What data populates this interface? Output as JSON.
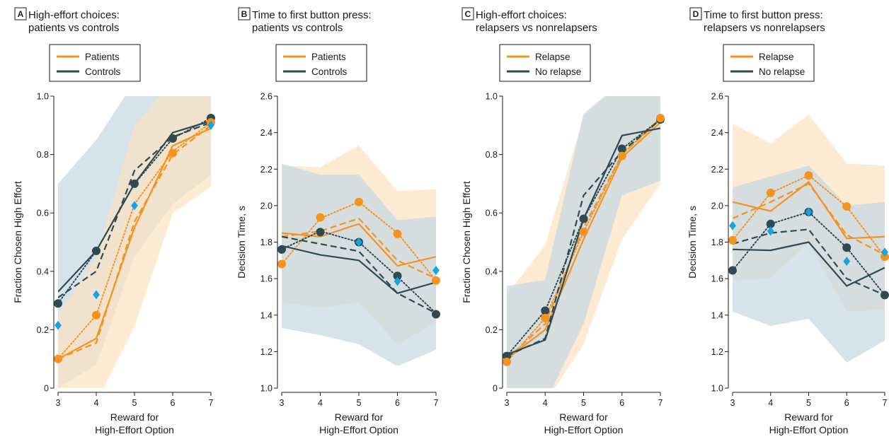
{
  "colors": {
    "orange": "#f5931e",
    "dark": "#2e4a53",
    "cyan": "#16a4e0",
    "orange_band": "#fbe2c2",
    "blue_band": "#c7d8e2"
  },
  "chart_data": [
    {
      "letter": "A",
      "type": "line",
      "title_lines": [
        "High-effort choices:",
        "patients vs controls"
      ],
      "xlabel_lines": [
        "Reward for",
        "High-Effort Option"
      ],
      "ylabel": "Fraction Chosen High Effort",
      "x": [
        3,
        4,
        5,
        6,
        7
      ],
      "xlim": [
        3,
        7
      ],
      "ylim": [
        0,
        1.0
      ],
      "yticks": [
        0,
        0.2,
        0.4,
        0.6,
        0.8,
        1.0
      ],
      "ytick_labels": [
        "0",
        "0.2",
        "0.4",
        "0.6",
        "0.8",
        "1.0"
      ],
      "grid": false,
      "legend_position": "top",
      "legend": [
        {
          "label": "Patients",
          "color": "orange"
        },
        {
          "label": "Controls",
          "color": "dark"
        }
      ],
      "bands": [
        {
          "color": "blue_band",
          "upper": [
            0.7,
            0.85,
            1.05,
            1.05,
            1.05
          ],
          "lower": [
            0.0,
            0.08,
            0.45,
            0.63,
            0.73
          ]
        },
        {
          "color": "orange_band",
          "upper": [
            0.25,
            0.45,
            0.9,
            1.05,
            1.05
          ],
          "lower": [
            -0.05,
            -0.05,
            0.21,
            0.6,
            0.69
          ]
        }
      ],
      "lines": [
        {
          "color": "dark",
          "style": "solid",
          "values": [
            0.33,
            0.47,
            0.7,
            0.875,
            0.915
          ]
        },
        {
          "color": "dark",
          "style": "dashed",
          "values": [
            0.31,
            0.4,
            0.745,
            0.86,
            0.91
          ]
        },
        {
          "color": "dark",
          "style": "dotted",
          "values": [
            0.29,
            0.47,
            0.7,
            0.855,
            0.925
          ]
        },
        {
          "color": "orange",
          "style": "solid",
          "values": [
            0.1,
            0.17,
            0.55,
            0.83,
            0.89
          ]
        },
        {
          "color": "orange",
          "style": "dashed",
          "values": [
            0.1,
            0.155,
            0.57,
            0.8,
            0.9
          ]
        },
        {
          "color": "orange",
          "style": "dotted",
          "values": [
            0.1,
            0.25,
            0.63,
            0.81,
            0.91
          ]
        }
      ],
      "markers": [
        {
          "shape": "circle",
          "color": "dark",
          "values": [
            0.29,
            0.47,
            0.7,
            0.855,
            0.925
          ]
        },
        {
          "shape": "circle",
          "color": "orange",
          "values": [
            0.1,
            0.25,
            null,
            0.805,
            0.91
          ]
        },
        {
          "shape": "diamond",
          "color": "cyan",
          "values": [
            0.215,
            0.32,
            0.625,
            null,
            0.9
          ]
        }
      ]
    },
    {
      "letter": "B",
      "type": "line",
      "title_lines": [
        "Time to first button press:",
        "patients vs controls"
      ],
      "xlabel_lines": [
        "Reward for",
        "High-Effort Option"
      ],
      "ylabel": "Decision Time, s",
      "x": [
        3,
        4,
        5,
        6,
        7
      ],
      "xlim": [
        3,
        7
      ],
      "ylim": [
        1.0,
        2.6
      ],
      "yticks": [
        1.0,
        1.2,
        1.4,
        1.6,
        1.8,
        2.0,
        2.2,
        2.4,
        2.6
      ],
      "ytick_labels": [
        "1.0",
        "1.2",
        "1.4",
        "1.6",
        "1.8",
        "2.0",
        "2.2",
        "2.4",
        "2.6"
      ],
      "grid": false,
      "legend_position": "top",
      "legend": [
        {
          "label": "Patients",
          "color": "orange"
        },
        {
          "label": "Controls",
          "color": "dark"
        }
      ],
      "bands": [
        {
          "color": "orange_band",
          "upper": [
            2.22,
            2.21,
            2.33,
            2.08,
            2.09
          ],
          "lower": [
            1.47,
            1.44,
            1.47,
            1.24,
            1.36
          ]
        },
        {
          "color": "blue_band",
          "upper": [
            2.23,
            2.17,
            2.17,
            1.92,
            1.94
          ],
          "lower": [
            1.33,
            1.29,
            1.24,
            1.12,
            1.21
          ]
        }
      ],
      "lines": [
        {
          "color": "orange",
          "style": "solid",
          "values": [
            1.85,
            1.83,
            1.9,
            1.67,
            1.72
          ]
        },
        {
          "color": "orange",
          "style": "dashed",
          "values": [
            1.83,
            1.86,
            1.93,
            1.7,
            1.6
          ]
        },
        {
          "color": "orange",
          "style": "dotted",
          "values": [
            1.68,
            1.93,
            2.02,
            1.85,
            1.59
          ]
        },
        {
          "color": "dark",
          "style": "solid",
          "values": [
            1.78,
            1.73,
            1.7,
            1.52,
            1.58
          ]
        },
        {
          "color": "dark",
          "style": "dashed",
          "values": [
            1.83,
            1.79,
            1.75,
            1.52,
            1.41
          ]
        },
        {
          "color": "dark",
          "style": "dotted",
          "values": [
            1.76,
            1.86,
            1.8,
            1.61,
            1.41
          ]
        }
      ],
      "markers": [
        {
          "shape": "circle",
          "color": "orange",
          "values": [
            1.68,
            1.935,
            2.02,
            1.845,
            1.59
          ]
        },
        {
          "shape": "circle",
          "color": "dark",
          "values": [
            1.76,
            1.855,
            1.8,
            1.615,
            1.405
          ]
        },
        {
          "shape": "diamond",
          "color": "cyan",
          "values": [
            null,
            null,
            1.8,
            1.585,
            1.645
          ]
        }
      ]
    },
    {
      "letter": "C",
      "type": "line",
      "title_lines": [
        "High-effort choices:",
        "relapsers vs nonrelapsers"
      ],
      "xlabel_lines": [
        "Reward for",
        "High-Effort Option"
      ],
      "ylabel": "Fraction Chosen High Effort",
      "x": [
        3,
        4,
        5,
        6,
        7
      ],
      "xlim": [
        3,
        7
      ],
      "ylim": [
        0,
        1.0
      ],
      "yticks": [
        0,
        0.2,
        0.4,
        0.6,
        0.8,
        1.0
      ],
      "ytick_labels": [
        "0",
        "0.2",
        "0.4",
        "0.6",
        "0.8",
        "1.0"
      ],
      "grid": false,
      "legend_position": "top",
      "legend": [
        {
          "label": "Relapse",
          "color": "orange"
        },
        {
          "label": "No relapse",
          "color": "dark"
        }
      ],
      "bands": [
        {
          "color": "orange_band",
          "upper": [
            0.32,
            0.49,
            0.93,
            1.05,
            1.05
          ],
          "lower": [
            -0.05,
            -0.05,
            0.15,
            0.51,
            0.7
          ]
        },
        {
          "color": "blue_band",
          "upper": [
            0.35,
            0.37,
            0.94,
            1.05,
            1.05
          ],
          "lower": [
            -0.05,
            -0.05,
            0.22,
            0.66,
            0.71
          ]
        }
      ],
      "lines": [
        {
          "color": "orange",
          "style": "solid",
          "values": [
            0.1,
            0.2,
            0.51,
            0.79,
            0.91
          ]
        },
        {
          "color": "orange",
          "style": "dashed",
          "values": [
            0.1,
            0.22,
            0.55,
            0.8,
            0.92
          ]
        },
        {
          "color": "orange",
          "style": "dotted",
          "values": [
            0.09,
            0.24,
            0.535,
            0.8,
            0.925
          ]
        },
        {
          "color": "dark",
          "style": "solid",
          "values": [
            0.115,
            0.165,
            0.58,
            0.865,
            0.89
          ]
        },
        {
          "color": "dark",
          "style": "dashed",
          "values": [
            0.11,
            0.17,
            0.66,
            0.81,
            0.92
          ]
        },
        {
          "color": "dark",
          "style": "dotted",
          "values": [
            0.11,
            0.265,
            0.58,
            0.82,
            0.92
          ]
        }
      ],
      "markers": [
        {
          "shape": "circle",
          "color": "dark",
          "values": [
            0.11,
            0.265,
            0.58,
            0.82,
            0.92
          ]
        },
        {
          "shape": "circle",
          "color": "orange",
          "values": [
            0.09,
            0.24,
            0.535,
            0.795,
            0.925
          ]
        }
      ]
    },
    {
      "letter": "D",
      "type": "line",
      "title_lines": [
        "Time to first button press:",
        "relapsers vs nonrelapsers"
      ],
      "xlabel_lines": [
        "Reward for",
        "High-Effort Option"
      ],
      "ylabel": "Decision Time, s",
      "x": [
        3,
        4,
        5,
        6,
        7
      ],
      "xlim": [
        3,
        7
      ],
      "ylim": [
        1.0,
        2.6
      ],
      "yticks": [
        1.0,
        1.2,
        1.4,
        1.6,
        1.8,
        2.0,
        2.2,
        2.4,
        2.6
      ],
      "ytick_labels": [
        "1.0",
        "1.2",
        "1.4",
        "1.6",
        "1.8",
        "2.0",
        "2.2",
        "2.4",
        "2.6"
      ],
      "grid": false,
      "legend_position": "top",
      "legend": [
        {
          "label": "Relapse",
          "color": "orange"
        },
        {
          "label": "No relapse",
          "color": "dark"
        }
      ],
      "bands": [
        {
          "color": "orange_band",
          "upper": [
            2.45,
            2.34,
            2.5,
            2.23,
            2.22
          ],
          "lower": [
            1.59,
            1.6,
            1.8,
            1.42,
            1.43
          ]
        },
        {
          "color": "blue_band",
          "upper": [
            2.1,
            2.16,
            2.22,
            2.0,
            2.02
          ],
          "lower": [
            1.42,
            1.34,
            1.38,
            1.14,
            1.26
          ]
        }
      ],
      "lines": [
        {
          "color": "orange",
          "style": "solid",
          "values": [
            2.02,
            1.97,
            2.13,
            1.82,
            1.83
          ]
        },
        {
          "color": "orange",
          "style": "dashed",
          "values": [
            1.93,
            2.02,
            2.12,
            1.84,
            1.73
          ]
        },
        {
          "color": "orange",
          "style": "dotted",
          "values": [
            1.81,
            2.07,
            2.165,
            1.995,
            1.72
          ]
        },
        {
          "color": "dark",
          "style": "solid",
          "values": [
            1.76,
            1.755,
            1.8,
            1.56,
            1.66
          ]
        },
        {
          "color": "dark",
          "style": "dashed",
          "values": [
            1.79,
            1.85,
            1.87,
            1.6,
            1.51
          ]
        },
        {
          "color": "dark",
          "style": "dotted",
          "values": [
            1.645,
            1.9,
            1.965,
            1.77,
            1.51
          ]
        }
      ],
      "markers": [
        {
          "shape": "circle",
          "color": "orange",
          "values": [
            1.81,
            2.07,
            2.165,
            1.995,
            1.72
          ]
        },
        {
          "shape": "circle",
          "color": "dark",
          "values": [
            1.645,
            1.9,
            1.965,
            1.77,
            1.51
          ]
        },
        {
          "shape": "diamond",
          "color": "cyan",
          "values": [
            1.89,
            1.86,
            1.965,
            1.695,
            1.745
          ]
        }
      ]
    }
  ]
}
